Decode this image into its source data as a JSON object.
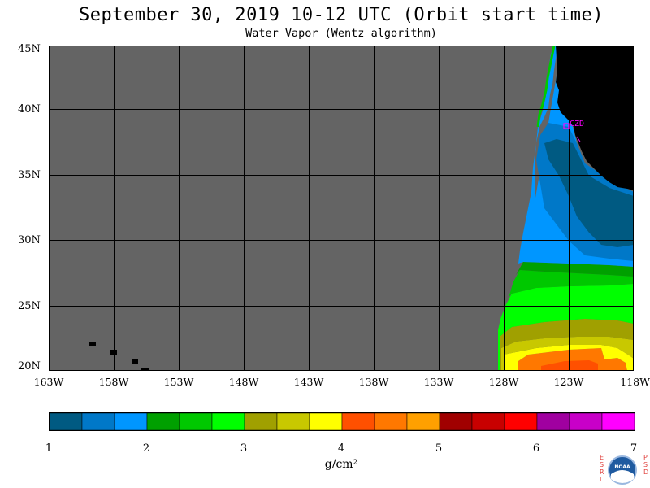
{
  "header": {
    "title": "September 30, 2019  10-12 UTC  (Orbit start time)",
    "subtitle": "Water Vapor (Wentz algorithm)"
  },
  "map": {
    "lat_labels": [
      "45N",
      "40N",
      "35N",
      "30N",
      "25N",
      "20N"
    ],
    "lon_labels": [
      "163W",
      "158W",
      "153W",
      "148W",
      "143W",
      "138W",
      "133W",
      "128W",
      "123W",
      "118W"
    ],
    "station_label": "CZD",
    "colors": {
      "no_data": "#646464",
      "land": "#000000",
      "grid": "#000000",
      "station": "#ff00ff"
    }
  },
  "colorbar": {
    "tick_labels": [
      "1",
      "2",
      "3",
      "4",
      "5",
      "6",
      "7"
    ],
    "units": "g/cm²",
    "colors": [
      "#005a82",
      "#0078c8",
      "#0096ff",
      "#00a000",
      "#00c800",
      "#00ff00",
      "#a0a000",
      "#c8c800",
      "#ffff00",
      "#ff5000",
      "#ff7800",
      "#ffa000",
      "#a00000",
      "#c80000",
      "#ff0000",
      "#a000a0",
      "#c800c8",
      "#ff00ff"
    ]
  },
  "logo": {
    "left_text": "ESRL",
    "right_text": "PSD",
    "center_text": "NOAA"
  }
}
